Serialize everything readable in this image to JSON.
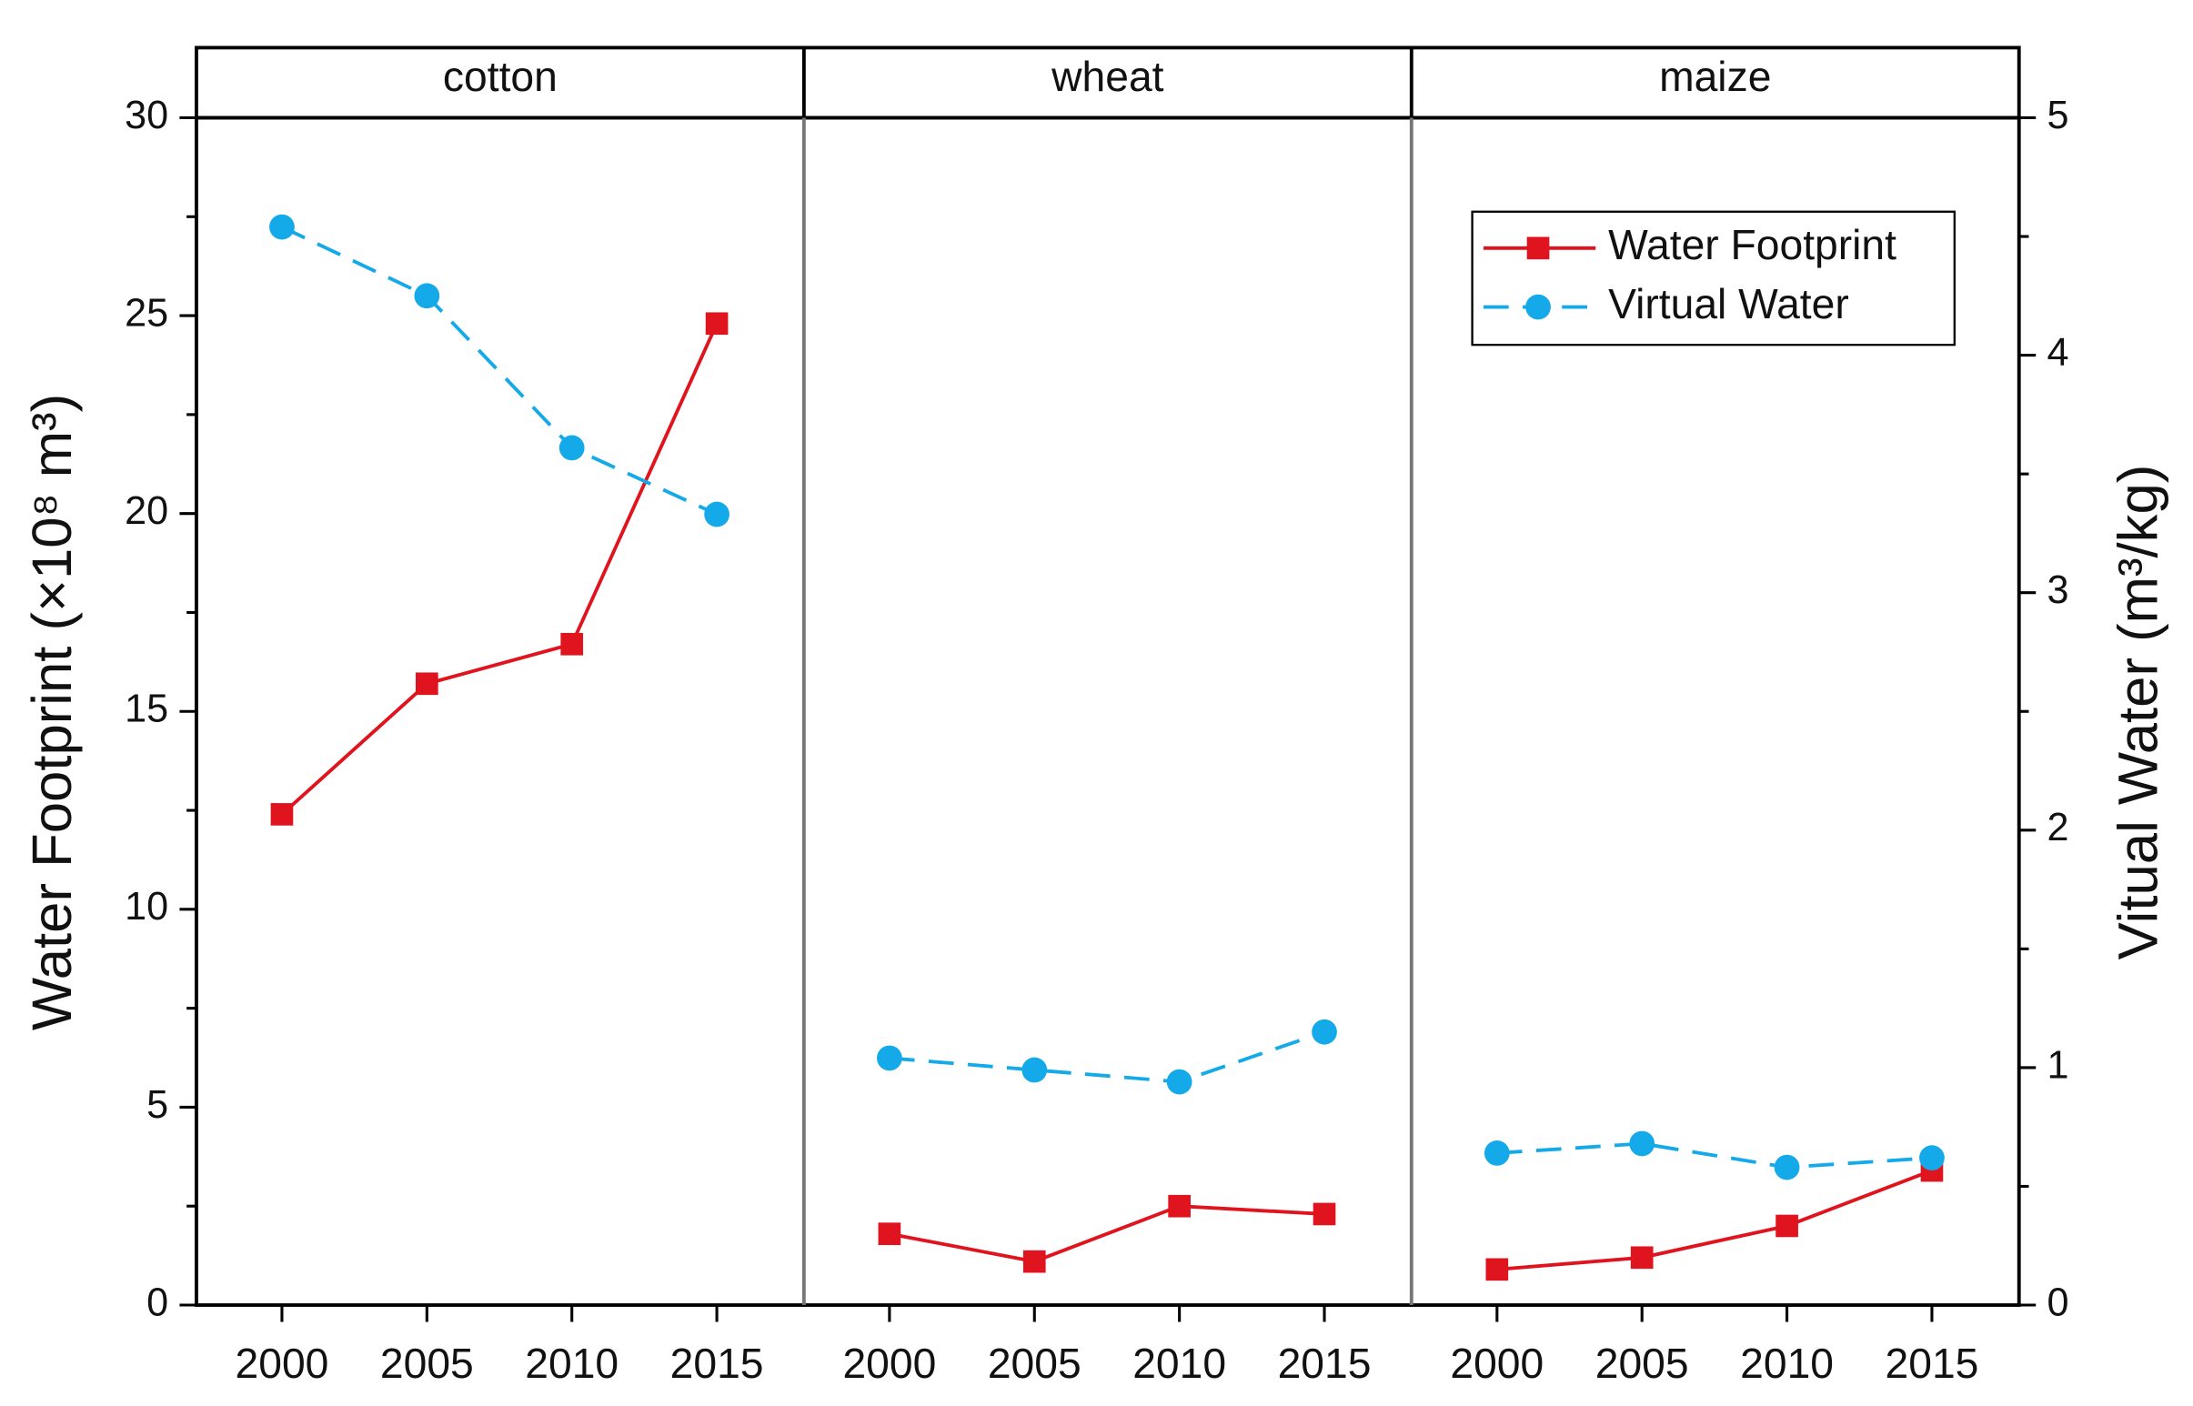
{
  "chart_data": {
    "type": "line",
    "ylabel": "Water Footprint (×10⁸ m³)",
    "y2label": "Vitual Water (m³/kg)",
    "ylim": [
      0,
      30
    ],
    "yticks": [
      0,
      5,
      10,
      15,
      20,
      25,
      30
    ],
    "y2lim": [
      0,
      5
    ],
    "y2ticks": [
      0,
      1,
      2,
      3,
      4,
      5
    ],
    "legend": "upper right",
    "series": [
      {
        "name": "Water Footprint",
        "color": "#e0141e",
        "marker": "square",
        "dash": false,
        "axis": "y"
      },
      {
        "name": "Virtual Water",
        "color": "#14a9e8",
        "marker": "circle",
        "dash": true,
        "axis": "y2"
      }
    ],
    "panels": [
      {
        "title": "cotton",
        "categories": [
          "2000",
          "2005",
          "2010",
          "2015"
        ],
        "values": [
          [
            12.4,
            15.7,
            16.7,
            24.8
          ],
          [
            4.54,
            4.25,
            3.61,
            3.33
          ]
        ]
      },
      {
        "title": "wheat",
        "categories": [
          "2000",
          "2005",
          "2010",
          "2015"
        ],
        "values": [
          [
            1.8,
            1.1,
            2.5,
            2.3
          ],
          [
            1.04,
            0.99,
            0.94,
            1.15
          ]
        ]
      },
      {
        "title": "maize",
        "categories": [
          "2000",
          "2005",
          "2010",
          "2015"
        ],
        "values": [
          [
            0.9,
            1.2,
            2.0,
            3.4
          ],
          [
            0.64,
            0.68,
            0.58,
            0.62
          ]
        ]
      }
    ]
  }
}
